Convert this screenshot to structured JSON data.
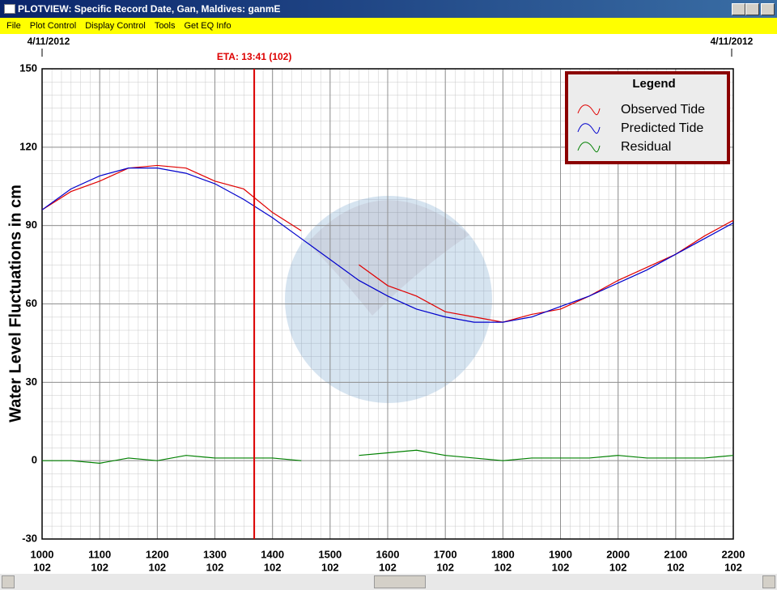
{
  "window": {
    "title": "PLOTVIEW: Specific Record Date, Gan, Maldives: ganmE"
  },
  "menu": [
    "File",
    "Plot Control",
    "Display Control",
    "Tools",
    "Get EQ Info"
  ],
  "chart_data": {
    "type": "line",
    "y_label": "Water Level Fluctuations in cm",
    "date_labels": [
      "4/11/2012",
      "4/11/2012"
    ],
    "annotation": {
      "text": "ETA: 13:41 (102)",
      "x": 13.683,
      "color": "#dd0000"
    },
    "legend_title": "Legend",
    "x": [
      10,
      10.5,
      11,
      11.5,
      12,
      12.5,
      13,
      13.5,
      14,
      14.5,
      15,
      15.5,
      16,
      16.5,
      17,
      17.5,
      18,
      18.5,
      19,
      19.5,
      20,
      20.5,
      21,
      21.5,
      22
    ],
    "series": [
      {
        "name": "Observed Tide",
        "color": "#e00000",
        "values": [
          96,
          103,
          107,
          112,
          113,
          112,
          107,
          104,
          95,
          88,
          null,
          75,
          67,
          63,
          57,
          55,
          53,
          56,
          58,
          63,
          69,
          74,
          79,
          86,
          92
        ]
      },
      {
        "name": "Predicted Tide",
        "color": "#0000cc",
        "values": [
          96,
          104,
          109,
          112,
          112,
          110,
          106,
          100,
          93,
          85,
          77,
          69,
          63,
          58,
          55,
          53,
          53,
          55,
          59,
          63,
          68,
          73,
          79,
          85,
          91
        ]
      },
      {
        "name": "Residual",
        "color": "#008000",
        "values": [
          0,
          0,
          -1,
          1,
          0,
          2,
          1,
          1,
          1,
          0,
          null,
          2,
          3,
          4,
          2,
          1,
          0,
          1,
          1,
          1,
          2,
          1,
          1,
          1,
          2
        ]
      }
    ],
    "xlim": [
      10,
      22
    ],
    "xticks": [
      {
        "value": 10,
        "label": "1000"
      },
      {
        "value": 11,
        "label": "1100"
      },
      {
        "value": 12,
        "label": "1200"
      },
      {
        "value": 13,
        "label": "1300"
      },
      {
        "value": 14,
        "label": "1400"
      },
      {
        "value": 15,
        "label": "1500"
      },
      {
        "value": 16,
        "label": "1600"
      },
      {
        "value": 17,
        "label": "1700"
      },
      {
        "value": 18,
        "label": "1800"
      },
      {
        "value": 19,
        "label": "1900"
      },
      {
        "value": 20,
        "label": "2000"
      },
      {
        "value": 21,
        "label": "2100"
      },
      {
        "value": 22,
        "label": "2200"
      }
    ],
    "xtick_sublabels": [
      "102",
      "102",
      "102",
      "102",
      "102",
      "102",
      "102",
      "102",
      "102",
      "102",
      "102",
      "102",
      "102"
    ],
    "ylim": [
      -30,
      150
    ],
    "yticks": [
      -30,
      0,
      30,
      60,
      90,
      120,
      150
    ],
    "grid": true
  }
}
